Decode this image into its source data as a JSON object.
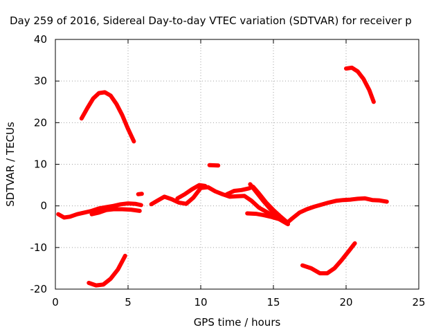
{
  "chart_data": {
    "type": "scatter",
    "title": "Day 259 of 2016, Sidereal Day-to-day VTEC variation (SDTVAR) for receiver p",
    "xlabel": "GPS time / hours",
    "ylabel": "SDTVAR / TECUs",
    "xlim": [
      0,
      25
    ],
    "ylim": [
      -20,
      40
    ],
    "xticks": [
      0,
      5,
      10,
      15,
      20,
      25
    ],
    "yticks": [
      -20,
      -10,
      0,
      10,
      20,
      30,
      40
    ],
    "xtick_labels": [
      "0",
      "5",
      "10",
      "15",
      "20",
      "25"
    ],
    "ytick_labels": [
      "-20",
      "-10",
      "0",
      "10",
      "20",
      "30",
      "40"
    ],
    "grid": true,
    "legend": "none",
    "color": "#ff0000",
    "series": [
      {
        "name": "arc-upper-left",
        "points": [
          [
            1.8,
            21
          ],
          [
            2.2,
            23.5
          ],
          [
            2.6,
            25.8
          ],
          [
            3.0,
            27.1
          ],
          [
            3.4,
            27.3
          ],
          [
            3.8,
            26.5
          ],
          [
            4.2,
            24.5
          ],
          [
            4.6,
            21.8
          ],
          [
            5.0,
            18.5
          ],
          [
            5.4,
            15.5
          ]
        ]
      },
      {
        "name": "arc-upper-right",
        "points": [
          [
            20.0,
            33.0
          ],
          [
            20.4,
            33.2
          ],
          [
            20.8,
            32.3
          ],
          [
            21.2,
            30.5
          ],
          [
            21.6,
            27.8
          ],
          [
            21.9,
            25.0
          ]
        ]
      },
      {
        "name": "arc-lower-left",
        "points": [
          [
            2.3,
            -18.5
          ],
          [
            2.8,
            -19.1
          ],
          [
            3.3,
            -18.9
          ],
          [
            3.8,
            -17.5
          ],
          [
            4.3,
            -15.3
          ],
          [
            4.8,
            -12.0
          ]
        ]
      },
      {
        "name": "arc-lower-right",
        "points": [
          [
            17.0,
            -14.3
          ],
          [
            17.6,
            -15.0
          ],
          [
            18.2,
            -16.2
          ],
          [
            18.7,
            -16.2
          ],
          [
            19.2,
            -15.0
          ],
          [
            19.7,
            -13.0
          ],
          [
            20.2,
            -10.8
          ],
          [
            20.6,
            -9.0
          ]
        ]
      },
      {
        "name": "patch-10-5",
        "points": [
          [
            10.6,
            9.8
          ],
          [
            11.2,
            9.7
          ]
        ]
      },
      {
        "name": "band-left",
        "points": [
          [
            0.2,
            -2.0
          ],
          [
            0.6,
            -2.8
          ],
          [
            1.0,
            -2.6
          ],
          [
            1.5,
            -2.0
          ],
          [
            2.0,
            -1.6
          ],
          [
            2.5,
            -1.2
          ],
          [
            3.0,
            -0.6
          ],
          [
            3.5,
            -0.3
          ],
          [
            4.0,
            0.0
          ],
          [
            4.5,
            0.4
          ],
          [
            5.0,
            0.6
          ],
          [
            5.5,
            0.5
          ],
          [
            5.9,
            0.2
          ]
        ]
      },
      {
        "name": "band-left-lower",
        "points": [
          [
            2.5,
            -2.0
          ],
          [
            3.0,
            -1.6
          ],
          [
            3.5,
            -1.0
          ],
          [
            4.0,
            -0.8
          ],
          [
            4.6,
            -0.8
          ],
          [
            5.2,
            -0.9
          ],
          [
            5.8,
            -1.2
          ]
        ]
      },
      {
        "name": "patch-5-8-3",
        "points": [
          [
            5.7,
            2.8
          ],
          [
            5.95,
            2.9
          ]
        ]
      },
      {
        "name": "band-middle-a",
        "points": [
          [
            6.6,
            0.4
          ],
          [
            7.0,
            1.2
          ],
          [
            7.5,
            2.2
          ],
          [
            8.0,
            1.6
          ],
          [
            8.5,
            0.8
          ],
          [
            9.0,
            0.5
          ],
          [
            9.5,
            2.0
          ],
          [
            10.0,
            4.3
          ],
          [
            10.5,
            4.5
          ],
          [
            11.0,
            3.5
          ],
          [
            11.5,
            2.8
          ],
          [
            12.0,
            2.2
          ],
          [
            12.5,
            2.3
          ],
          [
            13.0,
            2.4
          ],
          [
            13.5,
            1.2
          ],
          [
            14.0,
            -0.4
          ],
          [
            14.5,
            -1.4
          ],
          [
            15.0,
            -2.4
          ],
          [
            15.5,
            -3.3
          ],
          [
            16.0,
            -4.0
          ]
        ]
      },
      {
        "name": "band-middle-b",
        "points": [
          [
            8.4,
            1.8
          ],
          [
            8.9,
            2.8
          ],
          [
            9.4,
            4.0
          ],
          [
            9.9,
            5.0
          ],
          [
            10.3,
            4.8
          ]
        ]
      },
      {
        "name": "band-middle-c",
        "points": [
          [
            11.8,
            2.8
          ],
          [
            12.3,
            3.6
          ],
          [
            12.8,
            3.8
          ],
          [
            13.3,
            4.2
          ],
          [
            13.6,
            4.6
          ],
          [
            14.0,
            3.0
          ],
          [
            14.5,
            0.8
          ],
          [
            15.0,
            -1.0
          ],
          [
            15.5,
            -2.6
          ],
          [
            15.9,
            -3.8
          ]
        ]
      },
      {
        "name": "band-middle-d",
        "points": [
          [
            13.4,
            5.2
          ],
          [
            13.8,
            3.4
          ],
          [
            14.3,
            1.2
          ],
          [
            14.8,
            -0.8
          ],
          [
            15.3,
            -2.4
          ],
          [
            15.8,
            -3.6
          ]
        ]
      },
      {
        "name": "band-middle-e",
        "points": [
          [
            13.2,
            -1.8
          ],
          [
            13.8,
            -1.9
          ],
          [
            14.3,
            -2.2
          ],
          [
            14.8,
            -2.6
          ],
          [
            15.4,
            -3.2
          ],
          [
            16.0,
            -4.4
          ]
        ]
      },
      {
        "name": "band-right",
        "points": [
          [
            15.9,
            -4.2
          ],
          [
            16.3,
            -3.0
          ],
          [
            16.8,
            -1.6
          ],
          [
            17.3,
            -0.8
          ],
          [
            17.8,
            -0.2
          ],
          [
            18.3,
            0.3
          ],
          [
            18.8,
            0.8
          ],
          [
            19.3,
            1.2
          ],
          [
            19.8,
            1.4
          ],
          [
            20.3,
            1.5
          ],
          [
            20.8,
            1.7
          ],
          [
            21.3,
            1.8
          ],
          [
            21.8,
            1.4
          ],
          [
            22.3,
            1.3
          ],
          [
            22.8,
            1.0
          ]
        ]
      }
    ]
  }
}
